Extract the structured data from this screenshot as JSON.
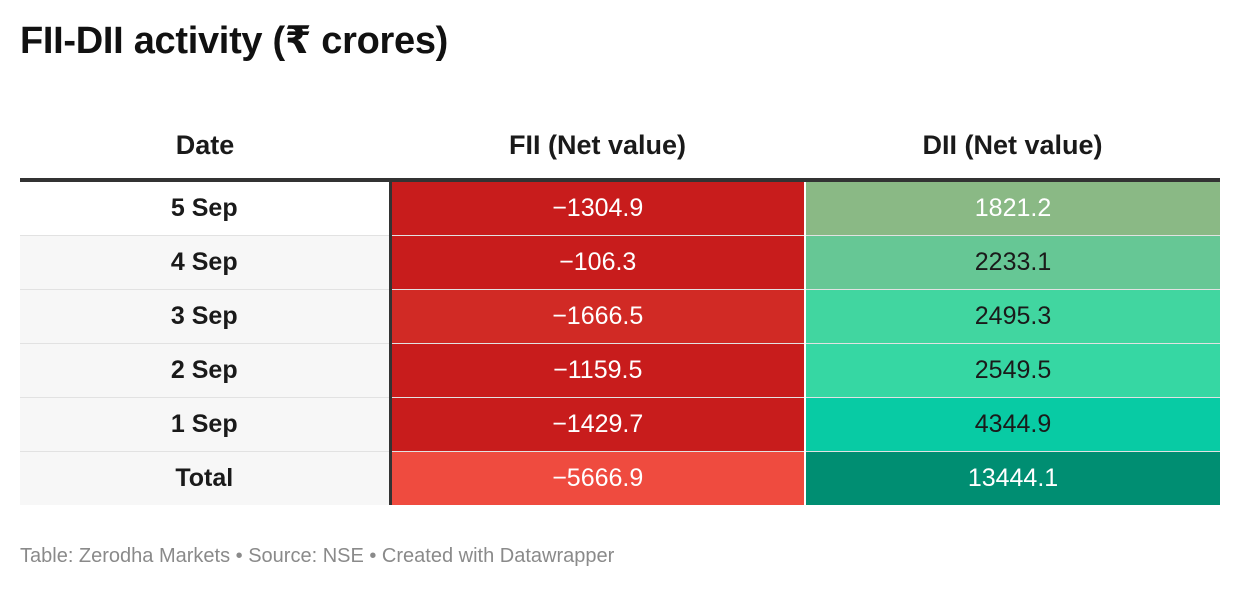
{
  "title": "FII-DII activity (₹ crores)",
  "source": "Table: Zerodha Markets • Source: NSE • Created with Datawrapper",
  "chart_data": {
    "type": "table",
    "title": "FII-DII activity (₹ crores)",
    "columns": [
      "Date",
      "FII (Net value)",
      "DII (Net value)"
    ],
    "rows": [
      {
        "date": "5 Sep",
        "fii": "−1304.9",
        "dii": "1821.2",
        "fii_color": "#c81c1c",
        "dii_color": "#8ab985",
        "dii_text": "#ffffff"
      },
      {
        "date": "4 Sep",
        "fii": "−106.3",
        "dii": "2233.1",
        "fii_color": "#c81c1c",
        "dii_color": "#66c795",
        "dii_text": "#1a1a1a"
      },
      {
        "date": "3 Sep",
        "fii": "−1666.5",
        "dii": "2495.3",
        "fii_color": "#d12a25",
        "dii_color": "#41d6a0",
        "dii_text": "#1a1a1a"
      },
      {
        "date": "2 Sep",
        "fii": "−1159.5",
        "dii": "2549.5",
        "fii_color": "#c81c1c",
        "dii_color": "#36d7a3",
        "dii_text": "#1a1a1a"
      },
      {
        "date": "1 Sep",
        "fii": "−1429.7",
        "dii": "4344.9",
        "fii_color": "#c81c1c",
        "dii_color": "#08cba4",
        "dii_text": "#1a1a1a"
      },
      {
        "date": "Total",
        "fii": "−5666.9",
        "dii": "13444.1",
        "fii_color": "#ef4b3f",
        "dii_color": "#008e72",
        "dii_text": "#ffffff"
      }
    ]
  }
}
